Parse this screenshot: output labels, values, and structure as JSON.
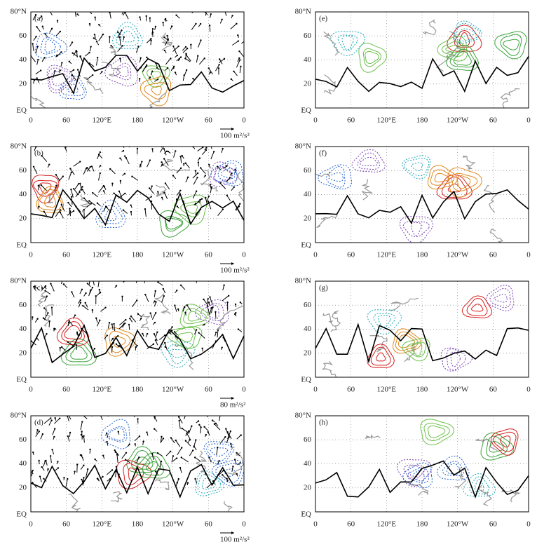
{
  "y_axis_labels": [
    "80°N",
    "60",
    "40",
    "20",
    "EQ"
  ],
  "x_axis_labels": [
    "0",
    "60",
    "120°E",
    "180",
    "120°W",
    "60",
    "0"
  ],
  "panels": [
    {
      "label": "(a)",
      "scale_label": "100 m²/s²"
    },
    {
      "label": "(e)"
    },
    {
      "label": "(b)",
      "scale_label": "100 m²/s²"
    },
    {
      "label": "(f)"
    },
    {
      "label": "(c)",
      "scale_label": "80 m²/s²"
    },
    {
      "label": "(g)"
    },
    {
      "label": "(d)",
      "scale_label": "100 m²/s²"
    },
    {
      "label": "(h)"
    }
  ]
}
